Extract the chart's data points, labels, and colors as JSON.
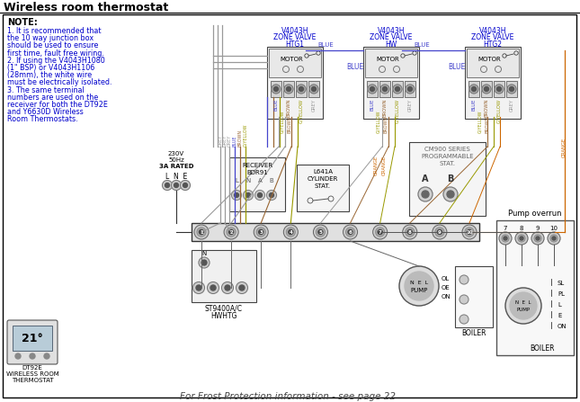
{
  "title": "Wireless room thermostat",
  "bg_color": "#ffffff",
  "note_title": "NOTE:",
  "note_lines": [
    "1. It is recommended that",
    "the 10 way junction box",
    "should be used to ensure",
    "first time, fault free wiring.",
    "2. If using the V4043H1080",
    "(1\" BSP) or V4043H1106",
    "(28mm), the white wire",
    "must be electrically isolated.",
    "3. The same terminal",
    "numbers are used on the",
    "receiver for both the DT92E",
    "and Y6630D Wireless",
    "Room Thermostats."
  ],
  "valve1_label": [
    "V4043H",
    "ZONE VALVE",
    "HTG1"
  ],
  "valve2_label": [
    "V4043H",
    "ZONE VALVE",
    "HW"
  ],
  "valve3_label": [
    "V4043H",
    "ZONE VALVE",
    "HTG2"
  ],
  "wire_colors": {
    "GREY": "#999999",
    "BLUE": "#4444cc",
    "BROWN": "#996633",
    "G/YELLOW": "#999900",
    "ORANGE": "#cc6600"
  },
  "footer_text": "For Frost Protection information - see page 22",
  "pump_overrun_label": "Pump overrun",
  "boiler_label": "BOILER",
  "dt92e_label": [
    "DT92E",
    "WIRELESS ROOM",
    "THERMOSTAT"
  ],
  "st9400_label": "ST9400A/C",
  "hw_htg_label": "HWHTG",
  "receiver_label": [
    "RECEIVER",
    "BDR91"
  ],
  "cylinder_label": [
    "L641A",
    "CYLINDER",
    "STAT."
  ],
  "cm900_label": [
    "CM900 SERIES",
    "PROGRAMMABLE",
    "STAT."
  ],
  "power_label": [
    "230V",
    "50Hz",
    "3A RATED"
  ],
  "lne_label": "L  N  E",
  "text_blue": "#0000cc",
  "text_black": "#000000",
  "text_dark": "#333333"
}
